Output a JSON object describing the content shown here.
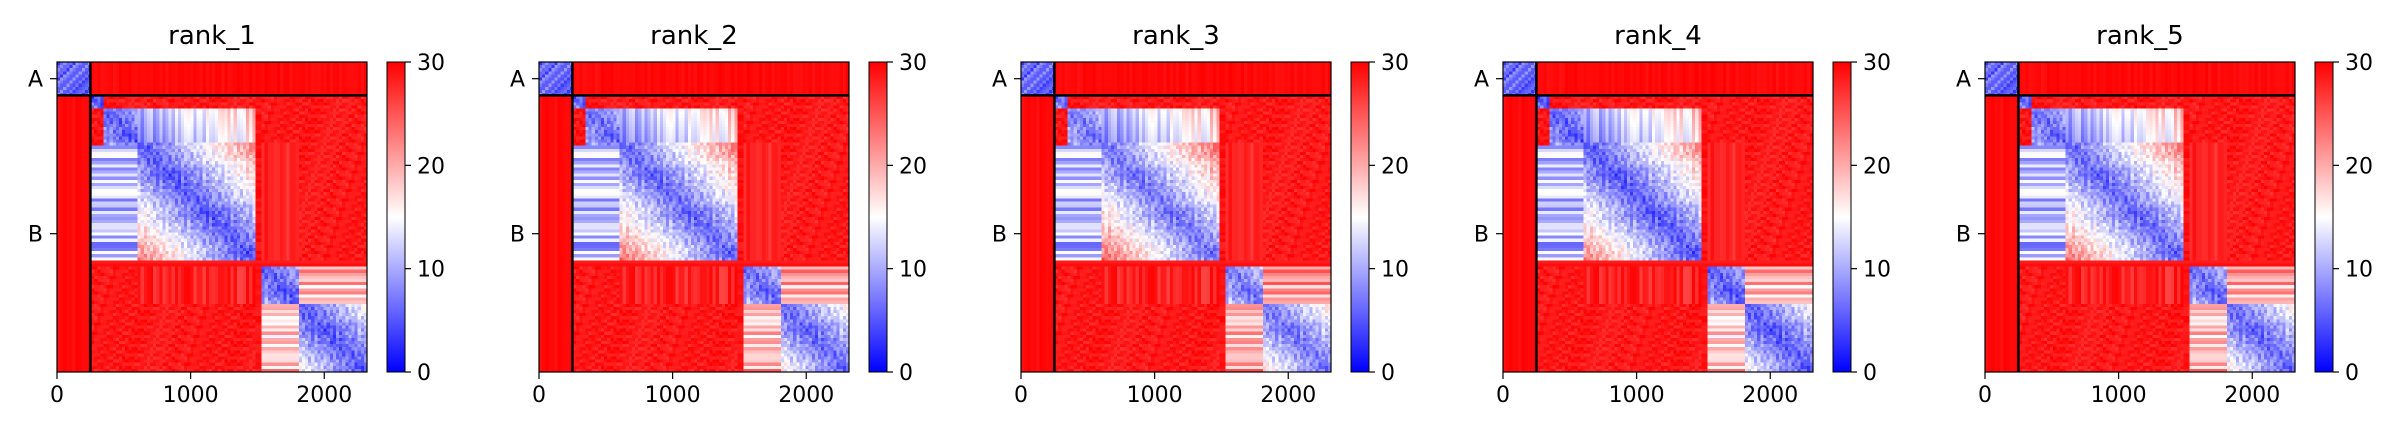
{
  "chart_data": [
    {
      "type": "heatmap",
      "title": "rank_1",
      "xlim": [
        0,
        2320
      ],
      "xticks": [
        0,
        1000,
        2000
      ],
      "y_tick_labels": [
        "A",
        "B"
      ],
      "chains": [
        {
          "name": "A",
          "start": 0,
          "end": 250
        },
        {
          "name": "B",
          "start": 250,
          "end": 2320
        }
      ],
      "colorbar": {
        "min": 0,
        "max": 30,
        "ticks": [
          0,
          10,
          20,
          30
        ],
        "colors": [
          "#0000ff",
          "#ffffff",
          "#ff0000"
        ]
      }
    },
    {
      "type": "heatmap",
      "title": "rank_2",
      "xlim": [
        0,
        2320
      ],
      "xticks": [
        0,
        1000,
        2000
      ],
      "y_tick_labels": [
        "A",
        "B"
      ],
      "chains": [
        {
          "name": "A",
          "start": 0,
          "end": 250
        },
        {
          "name": "B",
          "start": 250,
          "end": 2320
        }
      ],
      "colorbar": {
        "min": 0,
        "max": 30,
        "ticks": [
          0,
          10,
          20,
          30
        ],
        "colors": [
          "#0000ff",
          "#ffffff",
          "#ff0000"
        ]
      }
    },
    {
      "type": "heatmap",
      "title": "rank_3",
      "xlim": [
        0,
        2320
      ],
      "xticks": [
        0,
        1000,
        2000
      ],
      "y_tick_labels": [
        "A",
        "B"
      ],
      "chains": [
        {
          "name": "A",
          "start": 0,
          "end": 250
        },
        {
          "name": "B",
          "start": 250,
          "end": 2320
        }
      ],
      "colorbar": {
        "min": 0,
        "max": 30,
        "ticks": [
          0,
          10,
          20,
          30
        ],
        "colors": [
          "#0000ff",
          "#ffffff",
          "#ff0000"
        ]
      }
    },
    {
      "type": "heatmap",
      "title": "rank_4",
      "xlim": [
        0,
        2320
      ],
      "xticks": [
        0,
        1000,
        2000
      ],
      "y_tick_labels": [
        "A",
        "B"
      ],
      "chains": [
        {
          "name": "A",
          "start": 0,
          "end": 250
        },
        {
          "name": "B",
          "start": 250,
          "end": 2320
        }
      ],
      "colorbar": {
        "min": 0,
        "max": 30,
        "ticks": [
          0,
          10,
          20,
          30
        ],
        "colors": [
          "#0000ff",
          "#ffffff",
          "#ff0000"
        ]
      }
    },
    {
      "type": "heatmap",
      "title": "rank_5",
      "xlim": [
        0,
        2320
      ],
      "xticks": [
        0,
        1000,
        2000
      ],
      "y_tick_labels": [
        "A",
        "B"
      ],
      "chains": [
        {
          "name": "A",
          "start": 0,
          "end": 250
        },
        {
          "name": "B",
          "start": 250,
          "end": 2320
        }
      ],
      "colorbar": {
        "min": 0,
        "max": 30,
        "ticks": [
          0,
          10,
          20,
          30
        ],
        "colors": [
          "#0000ff",
          "#ffffff",
          "#ff0000"
        ]
      }
    }
  ]
}
